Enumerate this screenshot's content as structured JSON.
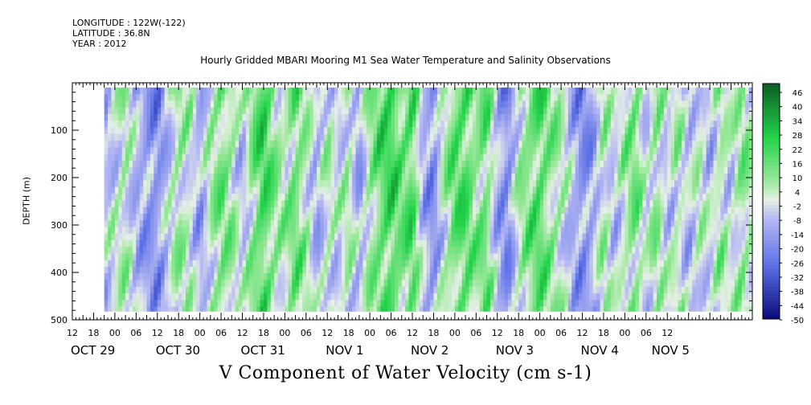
{
  "header": {
    "longitude": "LONGITUDE : 122W(-122)",
    "latitude": "LATITUDE : 36.8N",
    "year": "YEAR : 2012"
  },
  "colors": {
    "strong_negative": "#0a0a7a",
    "negative": "#5a6fe6",
    "weak_negative": "#b4b8f2",
    "neutral": "#e6f0e6",
    "weak_positive": "#9ae89a",
    "positive": "#22d44a",
    "strong_positive": "#0b5e22",
    "axis": "#000000"
  },
  "chart_data": {
    "type": "heatmap",
    "title": "Hourly Gridded MBARI Mooring M1 Sea Water Temperature and Salinity Observations",
    "xlabel": "V Component of Water Velocity (cm s-1)",
    "ylabel": "DEPTH (m)",
    "y_range": [
      0,
      500
    ],
    "y_inverted": true,
    "y_ticks": [
      100,
      200,
      300,
      400,
      500
    ],
    "y_tick_labels": [
      "100",
      "200",
      "300",
      "400",
      "500"
    ],
    "x_range_hours": [
      -12,
      180
    ],
    "x_hour_tick_labels": [
      "12",
      "18",
      "00",
      "06",
      "12",
      "18",
      "00",
      "06",
      "12",
      "18",
      "00",
      "06",
      "12",
      "18",
      "00",
      "06",
      "12",
      "18",
      "00",
      "06",
      "12",
      "18",
      "00",
      "06",
      "12",
      "18",
      "00",
      "06",
      "12"
    ],
    "date_labels": [
      {
        "label": "OCT 29",
        "hour": -12
      },
      {
        "label": "OCT 30",
        "hour": 12
      },
      {
        "label": "OCT 31",
        "hour": 36
      },
      {
        "label": "NOV  1",
        "hour": 60
      },
      {
        "label": "NOV  2",
        "hour": 84
      },
      {
        "label": "NOV  3",
        "hour": 108
      },
      {
        "label": "NOV  4",
        "hour": 132
      },
      {
        "label": "NOV  5",
        "hour": 152
      }
    ],
    "data_extent": {
      "start_hour": -3,
      "end_hour": 180,
      "min_depth": 10,
      "max_depth": 482
    },
    "colorbar": {
      "labels": [
        "46",
        "40",
        "34",
        "28",
        "22",
        "16",
        "10",
        "4",
        "-2",
        "-8",
        "-14",
        "-20",
        "-26",
        "-32",
        "-38",
        "-44",
        "-50"
      ],
      "min": -50,
      "max": 49
    },
    "time_profile": [
      {
        "hour": -3,
        "v": -8
      },
      {
        "hour": 0,
        "v": -2
      },
      {
        "hour": 3,
        "v": 6
      },
      {
        "hour": 6,
        "v": -10
      },
      {
        "hour": 9,
        "v": -16
      },
      {
        "hour": 12,
        "v": -20
      },
      {
        "hour": 15,
        "v": -6
      },
      {
        "hour": 18,
        "v": 8
      },
      {
        "hour": 21,
        "v": 2
      },
      {
        "hour": 24,
        "v": -14
      },
      {
        "hour": 27,
        "v": 4
      },
      {
        "hour": 30,
        "v": 14
      },
      {
        "hour": 33,
        "v": 8
      },
      {
        "hour": 36,
        "v": -8
      },
      {
        "hour": 39,
        "v": 12
      },
      {
        "hour": 42,
        "v": 24
      },
      {
        "hour": 45,
        "v": 10
      },
      {
        "hour": 48,
        "v": 4
      },
      {
        "hour": 51,
        "v": 16
      },
      {
        "hour": 54,
        "v": 6
      },
      {
        "hour": 57,
        "v": -12
      },
      {
        "hour": 60,
        "v": 4
      },
      {
        "hour": 63,
        "v": -4
      },
      {
        "hour": 66,
        "v": 6
      },
      {
        "hour": 69,
        "v": -14
      },
      {
        "hour": 72,
        "v": 8
      },
      {
        "hour": 75,
        "v": 18
      },
      {
        "hour": 78,
        "v": 24
      },
      {
        "hour": 81,
        "v": 14
      },
      {
        "hour": 84,
        "v": 22
      },
      {
        "hour": 87,
        "v": -10
      },
      {
        "hour": 90,
        "v": -20
      },
      {
        "hour": 93,
        "v": 4
      },
      {
        "hour": 96,
        "v": 18
      },
      {
        "hour": 99,
        "v": 20
      },
      {
        "hour": 102,
        "v": 10
      },
      {
        "hour": 105,
        "v": 16
      },
      {
        "hour": 108,
        "v": -12
      },
      {
        "hour": 111,
        "v": -22
      },
      {
        "hour": 114,
        "v": 4
      },
      {
        "hour": 117,
        "v": 14
      },
      {
        "hour": 120,
        "v": 20
      },
      {
        "hour": 123,
        "v": 10
      },
      {
        "hour": 126,
        "v": 4
      },
      {
        "hour": 129,
        "v": -10
      },
      {
        "hour": 132,
        "v": -20
      },
      {
        "hour": 135,
        "v": -14
      },
      {
        "hour": 138,
        "v": 8
      },
      {
        "hour": 141,
        "v": -8
      },
      {
        "hour": 144,
        "v": 6
      },
      {
        "hour": 147,
        "v": 14
      },
      {
        "hour": 150,
        "v": -4
      },
      {
        "hour": 153,
        "v": 10
      },
      {
        "hour": 156,
        "v": -6
      },
      {
        "hour": 159,
        "v": 6
      },
      {
        "hour": 162,
        "v": -10
      },
      {
        "hour": 165,
        "v": 4
      },
      {
        "hour": 168,
        "v": -8
      },
      {
        "hour": 171,
        "v": 8
      },
      {
        "hour": 174,
        "v": -4
      },
      {
        "hour": 177,
        "v": 10
      },
      {
        "hour": 180,
        "v": 4
      }
    ]
  }
}
